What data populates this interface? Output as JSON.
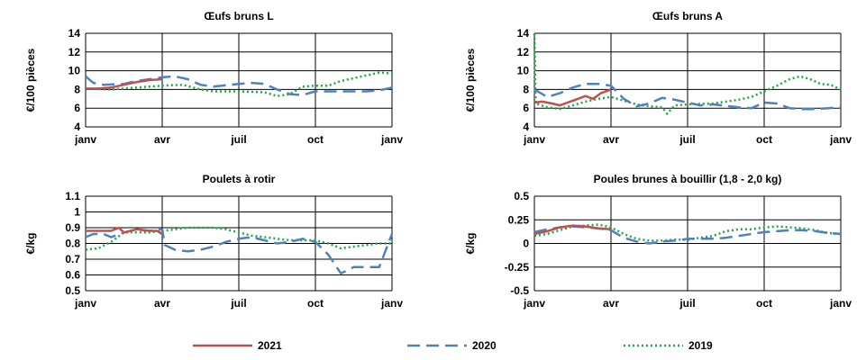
{
  "colors": {
    "2021": "#C0504D",
    "2020": "#4F81BD",
    "2019": "#1EA848"
  },
  "x_months": [
    "janv",
    "avr",
    "juil",
    "oct",
    "janv"
  ],
  "chart_data": [
    {
      "type": "line",
      "title": "Œufs bruns L",
      "ylabel": "€/100 pièces",
      "ylim": [
        4,
        14
      ],
      "yticks": [
        "4",
        "6",
        "8",
        "10",
        "12",
        "14"
      ],
      "ytick_values": [
        4,
        6,
        8,
        10,
        12,
        14
      ],
      "x_range": [
        0,
        12
      ],
      "xticks": [
        "janv",
        "avr",
        "juil",
        "oct",
        "janv"
      ],
      "grid": true,
      "series": [
        {
          "name": "2021",
          "points": [
            [
              0,
              8.1
            ],
            [
              0.5,
              8.1
            ],
            [
              1,
              8.2
            ],
            [
              1.5,
              8.5
            ],
            [
              2,
              8.8
            ],
            [
              2.5,
              9.0
            ],
            [
              3,
              9.1
            ]
          ]
        },
        {
          "name": "2020",
          "points": [
            [
              0,
              9.4
            ],
            [
              0.3,
              8.7
            ],
            [
              0.7,
              8.5
            ],
            [
              1.5,
              8.6
            ],
            [
              2,
              8.9
            ],
            [
              2.5,
              9.1
            ],
            [
              3,
              9.3
            ],
            [
              3.5,
              9.4
            ],
            [
              4,
              9.1
            ],
            [
              4.5,
              8.5
            ],
            [
              5,
              8.3
            ],
            [
              6,
              8.6
            ],
            [
              6.5,
              8.7
            ],
            [
              7,
              8.6
            ],
            [
              7.5,
              8.0
            ],
            [
              8,
              7.5
            ],
            [
              8.5,
              7.4
            ],
            [
              9,
              7.8
            ],
            [
              10,
              7.8
            ],
            [
              11,
              7.8
            ],
            [
              11.5,
              7.9
            ],
            [
              12,
              8.2
            ]
          ]
        },
        {
          "name": "2019",
          "points": [
            [
              0,
              8.1
            ],
            [
              1,
              8.0
            ],
            [
              2,
              8.2
            ],
            [
              3,
              8.4
            ],
            [
              3.8,
              8.5
            ],
            [
              4.5,
              8.0
            ],
            [
              5,
              7.8
            ],
            [
              6,
              7.8
            ],
            [
              7,
              7.7
            ],
            [
              7.5,
              7.3
            ],
            [
              8,
              7.5
            ],
            [
              8.5,
              8.3
            ],
            [
              9,
              8.4
            ],
            [
              9.5,
              8.4
            ],
            [
              10,
              8.9
            ],
            [
              10.5,
              9.2
            ],
            [
              11,
              9.5
            ],
            [
              11.5,
              9.8
            ],
            [
              12,
              9.7
            ]
          ]
        }
      ]
    },
    {
      "type": "line",
      "title": "Œufs bruns A",
      "ylabel": "€/100 pièces",
      "ylim": [
        4,
        14
      ],
      "yticks": [
        "4",
        "6",
        "8",
        "10",
        "12",
        "14"
      ],
      "ytick_values": [
        4,
        6,
        8,
        10,
        12,
        14
      ],
      "x_range": [
        0,
        12
      ],
      "xticks": [
        "janv",
        "avr",
        "juil",
        "oct",
        "janv"
      ],
      "grid": true,
      "series": [
        {
          "name": "2021",
          "points": [
            [
              0,
              6.6
            ],
            [
              0.3,
              6.7
            ],
            [
              0.7,
              6.5
            ],
            [
              1,
              6.3
            ],
            [
              1.5,
              6.8
            ],
            [
              2,
              7.3
            ],
            [
              2.3,
              7.0
            ],
            [
              2.6,
              7.6
            ],
            [
              3,
              8.0
            ]
          ]
        },
        {
          "name": "2020",
          "points": [
            [
              0,
              8.0
            ],
            [
              0.5,
              7.2
            ],
            [
              1,
              7.6
            ],
            [
              1.5,
              8.2
            ],
            [
              2,
              8.6
            ],
            [
              2.5,
              8.6
            ],
            [
              3,
              8.4
            ],
            [
              3.5,
              7.0
            ],
            [
              4,
              6.2
            ],
            [
              4.5,
              6.5
            ],
            [
              5,
              7.1
            ],
            [
              5.5,
              6.9
            ],
            [
              6,
              6.6
            ],
            [
              6.5,
              6.3
            ],
            [
              7,
              6.4
            ],
            [
              8,
              6.1
            ],
            [
              8.5,
              6.0
            ],
            [
              9,
              6.6
            ],
            [
              9.5,
              6.5
            ],
            [
              10,
              6.0
            ],
            [
              10.5,
              5.9
            ],
            [
              11,
              5.9
            ],
            [
              11.5,
              6.0
            ],
            [
              12,
              6.1
            ]
          ]
        },
        {
          "name": "2019",
          "points": [
            [
              0,
              14.0
            ],
            [
              0.05,
              6.5
            ],
            [
              0.5,
              6.1
            ],
            [
              1,
              5.9
            ],
            [
              1.5,
              6.3
            ],
            [
              2,
              6.7
            ],
            [
              2.5,
              7.0
            ],
            [
              3,
              7.2
            ],
            [
              3.5,
              6.8
            ],
            [
              4,
              6.4
            ],
            [
              4.5,
              6.2
            ],
            [
              5,
              6.1
            ],
            [
              5.2,
              5.4
            ],
            [
              5.5,
              6.3
            ],
            [
              6,
              6.4
            ],
            [
              7,
              6.5
            ],
            [
              8,
              6.9
            ],
            [
              8.5,
              7.2
            ],
            [
              9,
              7.8
            ],
            [
              9.5,
              8.4
            ],
            [
              10,
              9.1
            ],
            [
              10.4,
              9.4
            ],
            [
              10.8,
              9.1
            ],
            [
              11.2,
              8.6
            ],
            [
              11.6,
              8.5
            ],
            [
              12,
              8.0
            ]
          ]
        }
      ]
    },
    {
      "type": "line",
      "title": "Poulets à rotir",
      "ylabel": "€/kg",
      "ylim": [
        0.5,
        1.1
      ],
      "yticks": [
        "0.5",
        "0.6",
        "0.7",
        "0.8",
        "0.9",
        "1",
        "1.1"
      ],
      "ytick_values": [
        0.5,
        0.6,
        0.7,
        0.8,
        0.9,
        1.0,
        1.1
      ],
      "x_range": [
        0,
        12
      ],
      "xticks": [
        "janv",
        "avr",
        "juil",
        "oct",
        "janv"
      ],
      "grid": true,
      "series": [
        {
          "name": "2021",
          "points": [
            [
              0,
              0.88
            ],
            [
              0.5,
              0.88
            ],
            [
              1,
              0.88
            ],
            [
              1.3,
              0.9
            ],
            [
              1.5,
              0.87
            ],
            [
              2,
              0.89
            ],
            [
              2.5,
              0.88
            ],
            [
              2.8,
              0.88
            ],
            [
              3,
              0.86
            ]
          ]
        },
        {
          "name": "2020",
          "points": [
            [
              0,
              0.84
            ],
            [
              0.3,
              0.86
            ],
            [
              0.7,
              0.86
            ],
            [
              1,
              0.84
            ],
            [
              1.5,
              0.87
            ],
            [
              2,
              0.89
            ],
            [
              2.5,
              0.88
            ],
            [
              3,
              0.89
            ],
            [
              3.1,
              0.79
            ],
            [
              3.5,
              0.76
            ],
            [
              4,
              0.75
            ],
            [
              4.5,
              0.76
            ],
            [
              5,
              0.78
            ],
            [
              5.5,
              0.81
            ],
            [
              6,
              0.83
            ],
            [
              6.5,
              0.84
            ],
            [
              7,
              0.82
            ],
            [
              7.5,
              0.8
            ],
            [
              8,
              0.81
            ],
            [
              8.5,
              0.83
            ],
            [
              9,
              0.81
            ],
            [
              9.5,
              0.73
            ],
            [
              10,
              0.61
            ],
            [
              10.5,
              0.65
            ],
            [
              11,
              0.65
            ],
            [
              11.5,
              0.65
            ],
            [
              12,
              0.86
            ]
          ]
        },
        {
          "name": "2019",
          "points": [
            [
              0,
              0.76
            ],
            [
              0.5,
              0.77
            ],
            [
              1,
              0.81
            ],
            [
              1.5,
              0.87
            ],
            [
              2,
              0.87
            ],
            [
              2.5,
              0.87
            ],
            [
              3,
              0.88
            ],
            [
              3.5,
              0.89
            ],
            [
              4,
              0.9
            ],
            [
              5,
              0.9
            ],
            [
              5.5,
              0.89
            ],
            [
              6,
              0.87
            ],
            [
              6.5,
              0.85
            ],
            [
              7,
              0.84
            ],
            [
              7.5,
              0.83
            ],
            [
              8,
              0.82
            ],
            [
              8.5,
              0.82
            ],
            [
              9,
              0.82
            ],
            [
              9.5,
              0.8
            ],
            [
              10,
              0.77
            ],
            [
              10.5,
              0.78
            ],
            [
              11,
              0.79
            ],
            [
              11.5,
              0.8
            ],
            [
              12,
              0.8
            ]
          ]
        }
      ]
    },
    {
      "type": "line",
      "title": "Poules brunes à bouillir (1,8 - 2,0 kg)",
      "ylabel": "€/kg",
      "ylim": [
        -0.5,
        0.5
      ],
      "yticks": [
        "-0.5",
        "-0.25",
        "0",
        "0.25",
        "0.5"
      ],
      "ytick_values": [
        -0.5,
        -0.25,
        0,
        0.25,
        0.5
      ],
      "x_range": [
        0,
        12
      ],
      "xticks": [
        "janv",
        "avr",
        "juil",
        "oct",
        "janv"
      ],
      "grid": true,
      "series": [
        {
          "name": "2021",
          "points": [
            [
              0,
              0.1
            ],
            [
              0.5,
              0.13
            ],
            [
              1,
              0.17
            ],
            [
              1.5,
              0.19
            ],
            [
              2,
              0.18
            ],
            [
              2.5,
              0.16
            ],
            [
              3,
              0.15
            ]
          ]
        },
        {
          "name": "2020",
          "points": [
            [
              0,
              0.12
            ],
            [
              0.5,
              0.15
            ],
            [
              1,
              0.17
            ],
            [
              1.5,
              0.18
            ],
            [
              2,
              0.17
            ],
            [
              2.5,
              0.16
            ],
            [
              3,
              0.14
            ],
            [
              3.5,
              0.06
            ],
            [
              4,
              0.02
            ],
            [
              4.5,
              0.0
            ],
            [
              5,
              0.02
            ],
            [
              5.5,
              0.03
            ],
            [
              6,
              0.05
            ],
            [
              6.5,
              0.05
            ],
            [
              7,
              0.05
            ],
            [
              7.5,
              0.06
            ],
            [
              8,
              0.08
            ],
            [
              8.5,
              0.1
            ],
            [
              9,
              0.12
            ],
            [
              9.5,
              0.13
            ],
            [
              10,
              0.14
            ],
            [
              10.5,
              0.14
            ],
            [
              11,
              0.13
            ],
            [
              11.5,
              0.11
            ],
            [
              12,
              0.1
            ]
          ]
        },
        {
          "name": "2019",
          "points": [
            [
              0,
              0.08
            ],
            [
              0.5,
              0.1
            ],
            [
              1,
              0.14
            ],
            [
              1.5,
              0.18
            ],
            [
              2,
              0.19
            ],
            [
              2.5,
              0.2
            ],
            [
              3,
              0.17
            ],
            [
              3.5,
              0.1
            ],
            [
              4,
              0.05
            ],
            [
              4.5,
              0.03
            ],
            [
              5,
              0.03
            ],
            [
              5.5,
              0.04
            ],
            [
              6,
              0.04
            ],
            [
              6.5,
              0.06
            ],
            [
              7,
              0.08
            ],
            [
              7.5,
              0.13
            ],
            [
              8,
              0.15
            ],
            [
              8.5,
              0.15
            ],
            [
              9,
              0.17
            ],
            [
              9.5,
              0.18
            ],
            [
              10,
              0.17
            ],
            [
              10.5,
              0.16
            ],
            [
              11,
              0.14
            ],
            [
              11.5,
              0.11
            ],
            [
              12,
              0.1
            ]
          ]
        }
      ]
    }
  ],
  "legend": {
    "position": "bottom",
    "items": [
      {
        "label": "2021",
        "style": "solid"
      },
      {
        "label": "2020",
        "style": "dashed"
      },
      {
        "label": "2019",
        "style": "dotted"
      }
    ]
  }
}
